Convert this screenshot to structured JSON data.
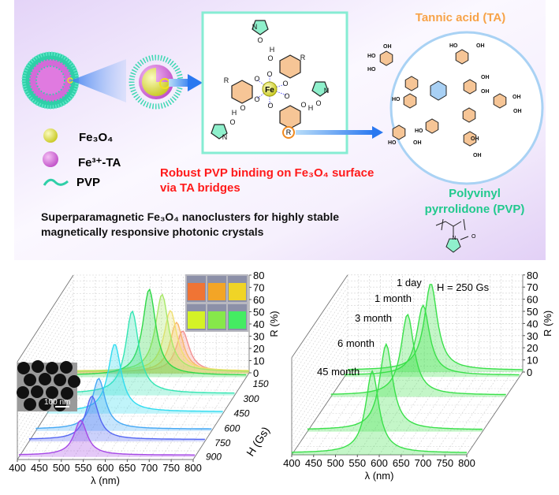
{
  "top": {
    "legend": {
      "fe3o4": "Fe₃O₄",
      "fe_ta": "Fe³⁺-TA",
      "pvp": "PVP"
    },
    "red_caption": [
      "Robust PVP binding on Fe₃O₄ surface",
      "via TA bridges"
    ],
    "main_caption": [
      "Superparamagnetic Fe₃O₄ nanoclusters for highly stable",
      "magnetically responsive photonic crystals"
    ],
    "ta_title": "Tannic acid (TA)",
    "pvp_title": [
      "Polyvinyl",
      "pyrrolidone (PVP)"
    ],
    "atoms": {
      "fe": "Fe",
      "o": "O",
      "r": "R",
      "h": "H",
      "n": "N",
      "oh": "OH",
      "ho": "HO"
    },
    "colors": {
      "red": "#ff1a1a",
      "orange": "#f7a348",
      "green": "#22c98e",
      "box": "#86ecd3"
    }
  },
  "chart_data": [
    {
      "type": "line",
      "style": "3d-waterfall",
      "xlabel": "λ (nm)",
      "ylabel": "R (%)",
      "zlabel": "H (Gs)",
      "xlim": [
        400,
        800
      ],
      "ylim": [
        0,
        80
      ],
      "xticks": [
        "400",
        "450",
        "500",
        "550",
        "600",
        "650",
        "700",
        "750",
        "800"
      ],
      "yticks": [
        "0",
        "10",
        "20",
        "30",
        "40",
        "50",
        "60",
        "70",
        "80"
      ],
      "zticks": [
        "150",
        "300",
        "450",
        "600",
        "750",
        "900"
      ],
      "inset_scale_label": "100 nm",
      "series": [
        {
          "name": "red",
          "color": "#f29090",
          "peak_nm": 650,
          "peak_R": 35
        },
        {
          "name": "orange",
          "color": "#f8b66a",
          "peak_nm": 636,
          "peak_R": 42
        },
        {
          "name": "yellow",
          "color": "#f0e070",
          "peak_nm": 621,
          "peak_R": 51
        },
        {
          "name": "yellow-green",
          "color": "#a8e868",
          "peak_nm": 603,
          "peak_R": 65
        },
        {
          "name": "green",
          "color": "#30d848",
          "peak_nm": 579,
          "peak_R": 72
        },
        {
          "name": "teal",
          "color": "#34e6b4",
          "peak_nm": 567,
          "peak_R": 69
        },
        {
          "name": "cyan",
          "color": "#30dcf0",
          "peak_nm": 554,
          "peak_R": 57
        },
        {
          "name": "light-blue",
          "color": "#44a8f4",
          "peak_nm": 543,
          "peak_R": 43
        },
        {
          "name": "blue",
          "color": "#5466f2",
          "peak_nm": 543,
          "peak_R": 37
        },
        {
          "name": "purple",
          "color": "#a648e6",
          "peak_nm": 540,
          "peak_R": 30
        }
      ],
      "vial_colors": [
        "#f07434",
        "#f3a526",
        "#f0d426",
        "#d4f226",
        "#86e84a",
        "#44ec62"
      ]
    },
    {
      "type": "line",
      "style": "3d-waterfall",
      "xlabel": "λ (nm)",
      "ylabel": "R (%)",
      "xlim": [
        400,
        800
      ],
      "ylim": [
        0,
        80
      ],
      "xticks": [
        "400",
        "450",
        "500",
        "550",
        "600",
        "650",
        "700",
        "750",
        "800"
      ],
      "yticks": [
        "0",
        "10",
        "20",
        "30",
        "40",
        "50",
        "60",
        "70",
        "80"
      ],
      "annotation": "H = 250 Gs",
      "series": [
        {
          "name": "1 day",
          "color": "#3ae04a",
          "peak_nm": 590,
          "peak_R": 73
        },
        {
          "name": "1 month",
          "color": "#3ae04a",
          "peak_nm": 580,
          "peak_R": 59
        },
        {
          "name": "3 month",
          "color": "#3ae04a",
          "peak_nm": 575,
          "peak_R": 68
        },
        {
          "name": "6 month",
          "color": "#3ae04a",
          "peak_nm": 580,
          "peak_R": 72
        },
        {
          "name": "45 month",
          "color": "#3ae04a",
          "peak_nm": 584,
          "peak_R": 69
        }
      ]
    }
  ]
}
